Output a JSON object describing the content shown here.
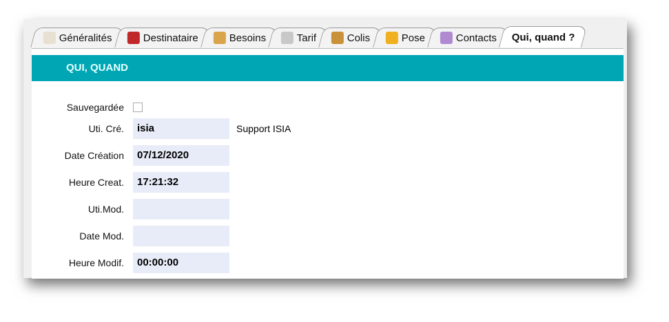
{
  "tabs": [
    {
      "label": "Généralités",
      "icon": "documents-icon",
      "color": "#e8e0d0"
    },
    {
      "label": "Destinataire",
      "icon": "truck-icon",
      "color": "#c0282a"
    },
    {
      "label": "Besoins",
      "icon": "inbox-download-icon",
      "color": "#d9a44a"
    },
    {
      "label": "Tarif",
      "icon": "calculator-icon",
      "color": "#c8c8c8"
    },
    {
      "label": "Colis",
      "icon": "box-icon",
      "color": "#c8913a"
    },
    {
      "label": "Pose",
      "icon": "drill-icon",
      "color": "#f0b020"
    },
    {
      "label": "Contacts",
      "icon": "people-icon",
      "color": "#b08ad0"
    },
    {
      "label": "Qui, quand ?",
      "icon": "",
      "color": ""
    }
  ],
  "active_tab": "Qui, quand ?",
  "section_title": "QUI, QUAND",
  "accent": "#00a6b4",
  "form": {
    "saved_label": "Sauvegardée",
    "saved_checked": false,
    "fields": [
      {
        "label": "Uti. Cré.",
        "value": "isia",
        "extra": "Support ISIA"
      },
      {
        "label": "Date Création",
        "value": "07/12/2020"
      },
      {
        "label": "Heure Creat.",
        "value": "17:21:32"
      },
      {
        "label": "Uti.Mod.",
        "value": ""
      },
      {
        "label": "Date Mod.",
        "value": ""
      },
      {
        "label": "Heure Modif.",
        "value": "00:00:00"
      }
    ]
  }
}
